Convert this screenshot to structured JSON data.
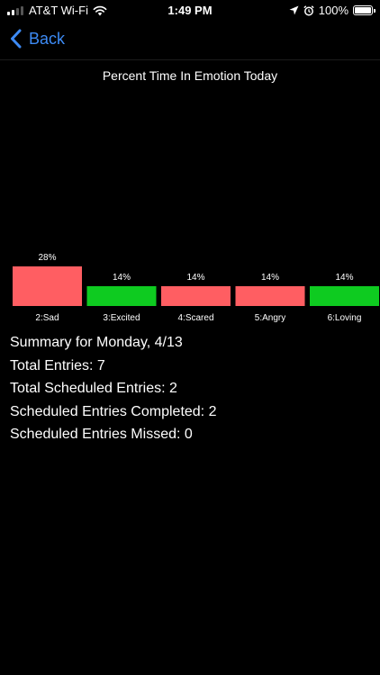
{
  "status_bar": {
    "carrier": "AT&T Wi-Fi",
    "time": "1:49 PM",
    "battery": "100%"
  },
  "nav": {
    "back_label": "Back"
  },
  "chart_data": {
    "type": "bar",
    "title": "Percent Time In Emotion Today",
    "categories": [
      "2:Sad",
      "3:Excited",
      "4:Scared",
      "5:Angry",
      "6:Loving"
    ],
    "values": [
      28,
      14,
      14,
      14,
      14
    ],
    "value_labels": [
      "28%",
      "14%",
      "14%",
      "14%",
      "14%"
    ],
    "colors": [
      "#ff5e62",
      "#0ecb20",
      "#ff5e62",
      "#ff5e62",
      "#0ecb20"
    ],
    "ylim": [
      0,
      28
    ],
    "grid": false,
    "legend": "none"
  },
  "summary": {
    "heading": "Summary for Monday, 4/13",
    "total_entries": "Total Entries: 7",
    "total_scheduled": "Total Scheduled Entries: 2",
    "scheduled_completed": "Scheduled Entries Completed: 2",
    "scheduled_missed": "Scheduled Entries Missed: 0"
  }
}
